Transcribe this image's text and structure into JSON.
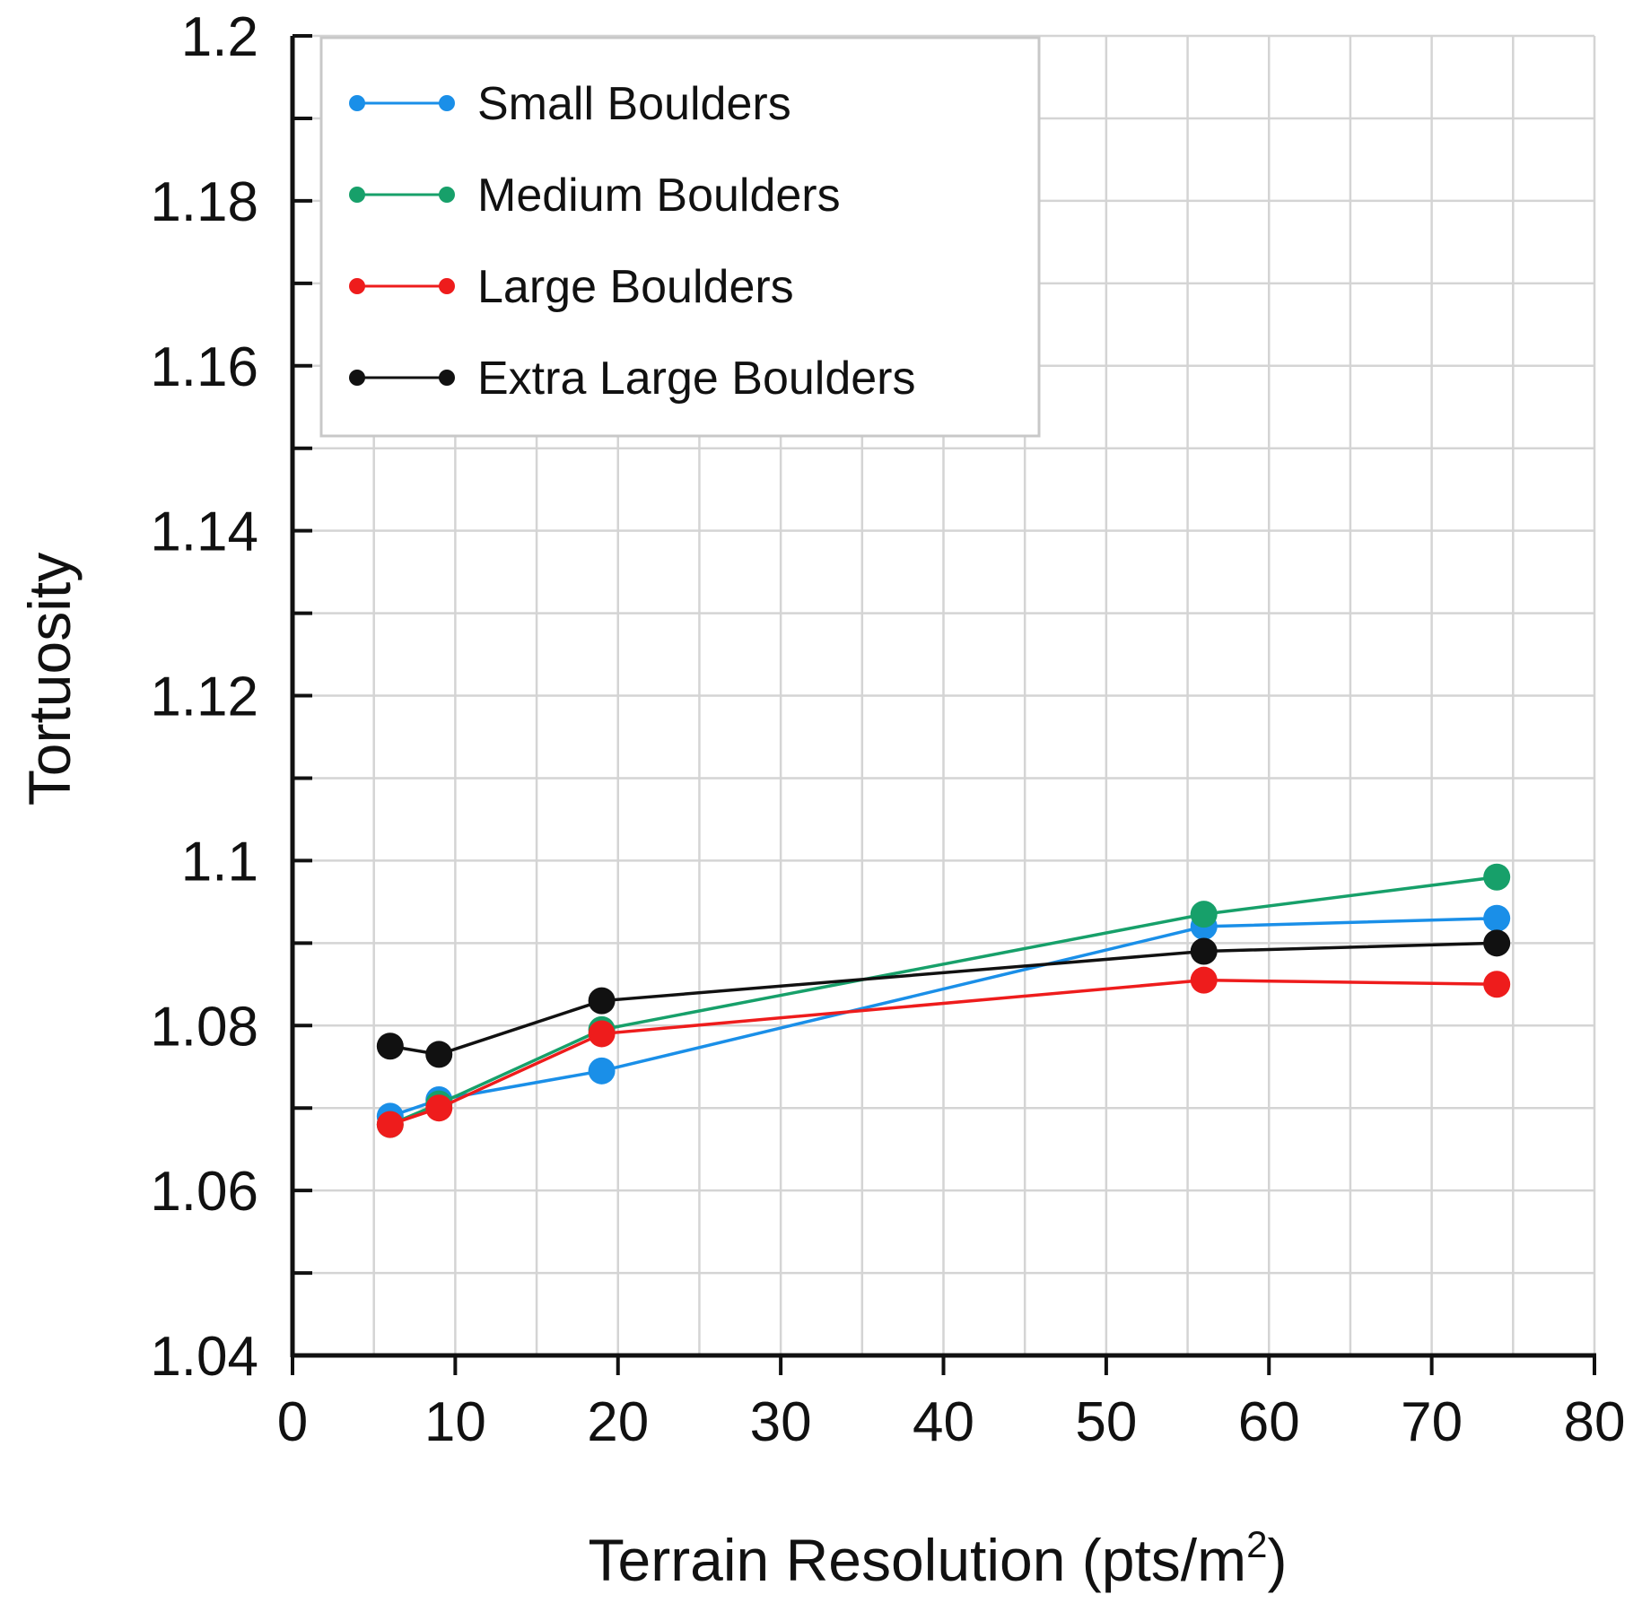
{
  "chart_data": {
    "type": "line",
    "title": "",
    "xlabel": "Terrain Resolution (pts/m",
    "xlabel_sup": "2",
    "xlabel_close": ")",
    "ylabel": "Tortuosity",
    "xlim": [
      0,
      80
    ],
    "ylim": [
      1.04,
      1.2
    ],
    "x_ticks": [
      0,
      10,
      20,
      30,
      40,
      50,
      60,
      70,
      80
    ],
    "x_tick_labels": [
      "0",
      "10",
      "20",
      "30",
      "40",
      "50",
      "60",
      "70",
      "80"
    ],
    "y_ticks": [
      1.04,
      1.06,
      1.08,
      1.1,
      1.12,
      1.14,
      1.16,
      1.18,
      1.2
    ],
    "y_tick_labels": [
      "1.04",
      "1.06",
      "1.08",
      "1.1",
      "1.12",
      "1.14",
      "1.16",
      "1.18",
      "1.2"
    ],
    "x_minor_step": 5,
    "y_minor_step": 0.01,
    "grid": true,
    "legend_position": "top-left",
    "x": [
      6,
      9,
      19,
      56,
      74
    ],
    "series": [
      {
        "name": "Small Boulders",
        "color": "#1a8fe8",
        "values": [
          1.069,
          1.071,
          1.0745,
          1.092,
          1.093
        ]
      },
      {
        "name": "Medium Boulders",
        "color": "#17a06a",
        "values": [
          1.068,
          1.0705,
          1.0795,
          1.0935,
          1.098
        ]
      },
      {
        "name": "Large Boulders",
        "color": "#ee1c1c",
        "values": [
          1.068,
          1.07,
          1.079,
          1.0855,
          1.085
        ]
      },
      {
        "name": "Extra Large Boulders",
        "color": "#111111",
        "values": [
          1.0775,
          1.0765,
          1.083,
          1.089,
          1.09
        ]
      }
    ]
  }
}
